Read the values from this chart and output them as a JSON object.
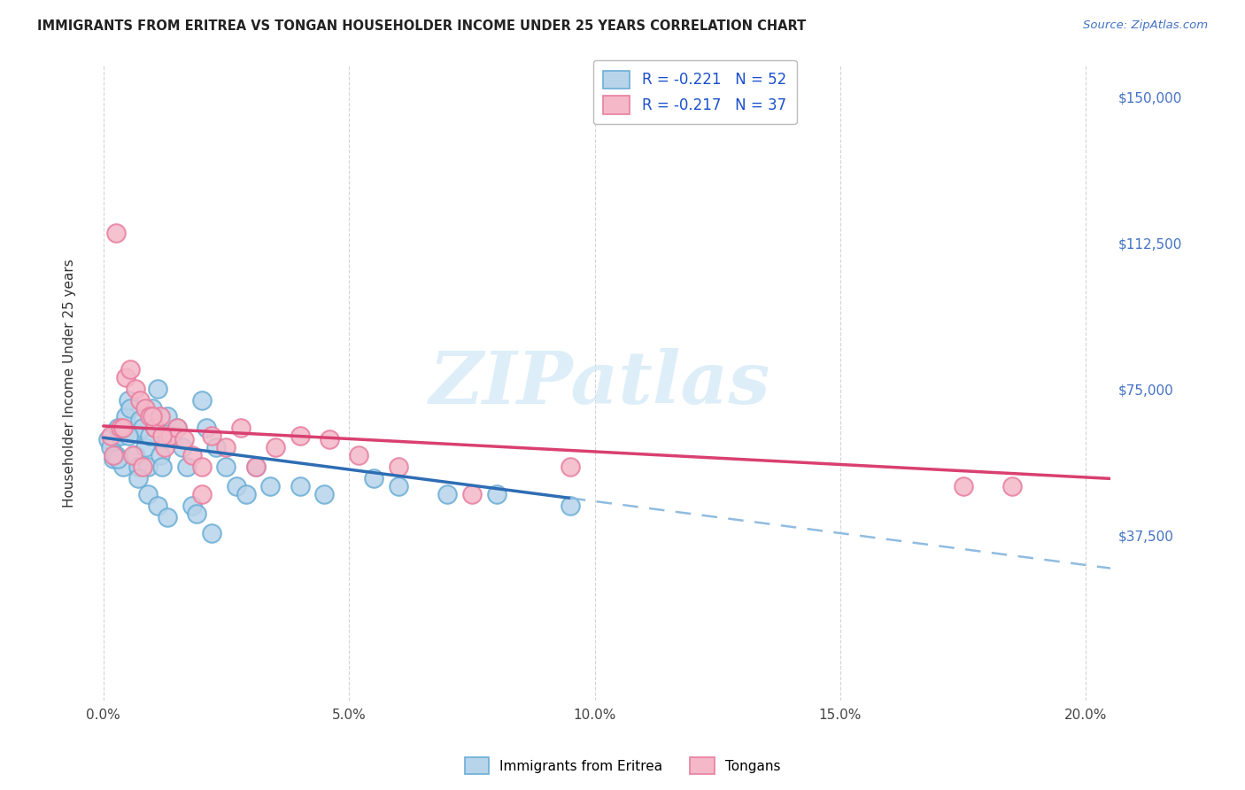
{
  "title": "IMMIGRANTS FROM ERITREA VS TONGAN HOUSEHOLDER INCOME UNDER 25 YEARS CORRELATION CHART",
  "source": "Source: ZipAtlas.com",
  "ylabel": "Householder Income Under 25 years",
  "xlabel_ticks": [
    "0.0%",
    "5.0%",
    "10.0%",
    "15.0%",
    "20.0%"
  ],
  "xlabel_vals": [
    0.0,
    5.0,
    10.0,
    15.0,
    20.0
  ],
  "ytick_vals": [
    0,
    37500,
    75000,
    112500,
    150000
  ],
  "ytick_labels": [
    "",
    "$37,500",
    "$75,000",
    "$112,500",
    "$150,000"
  ],
  "xlim": [
    -0.3,
    20.5
  ],
  "ylim": [
    -5000,
    158000
  ],
  "eritrea_fill": "#b8d4ea",
  "eritrea_edge": "#6aaed6",
  "tongan_fill": "#f4b8c8",
  "tongan_edge": "#e87fa0",
  "eritrea_trend_color": "#2e6db4",
  "eritrea_dash_color": "#90bce0",
  "tongan_trend_color": "#d94070",
  "grid_color": "#d0d0d0",
  "background": "#ffffff",
  "legend_text_color": "#1a4fcc",
  "legend_label_eritrea": "R = -0.221   N = 52",
  "legend_label_tongan": "R = -0.217   N = 37",
  "series_eritrea": "Immigrants from Eritrea",
  "series_tongan": "Tongans",
  "watermark": "ZIPatlas",
  "eritrea_x": [
    0.1,
    0.15,
    0.2,
    0.25,
    0.3,
    0.35,
    0.4,
    0.45,
    0.5,
    0.55,
    0.6,
    0.65,
    0.7,
    0.75,
    0.8,
    0.85,
    0.9,
    0.95,
    1.0,
    1.05,
    1.1,
    1.15,
    1.2,
    1.3,
    1.4,
    1.5,
    1.6,
    1.7,
    1.8,
    1.9,
    2.0,
    2.1,
    2.3,
    2.5,
    2.7,
    2.9,
    3.1,
    3.4,
    4.0,
    4.5,
    5.5,
    6.0,
    7.0,
    8.0,
    9.5,
    0.3,
    0.5,
    0.7,
    0.9,
    1.1,
    1.3,
    2.2
  ],
  "eritrea_y": [
    62000,
    60000,
    57000,
    58000,
    65000,
    63000,
    55000,
    68000,
    72000,
    70000,
    64000,
    58000,
    55000,
    67000,
    65000,
    60000,
    55000,
    63000,
    70000,
    65000,
    75000,
    58000,
    55000,
    68000,
    63000,
    65000,
    60000,
    55000,
    45000,
    43000,
    72000,
    65000,
    60000,
    55000,
    50000,
    48000,
    55000,
    50000,
    50000,
    48000,
    52000,
    50000,
    48000,
    48000,
    45000,
    57000,
    63000,
    52000,
    48000,
    45000,
    42000,
    38000
  ],
  "tongan_x": [
    0.15,
    0.25,
    0.35,
    0.45,
    0.55,
    0.65,
    0.75,
    0.85,
    0.95,
    1.05,
    1.15,
    1.25,
    1.35,
    1.5,
    1.65,
    1.8,
    2.0,
    2.2,
    2.5,
    2.8,
    3.1,
    3.5,
    4.0,
    4.6,
    5.2,
    6.0,
    7.5,
    9.5,
    17.5,
    18.5,
    0.2,
    0.4,
    0.6,
    0.8,
    1.0,
    1.2,
    2.0
  ],
  "tongan_y": [
    63000,
    115000,
    65000,
    78000,
    80000,
    75000,
    72000,
    70000,
    68000,
    65000,
    68000,
    60000,
    63000,
    65000,
    62000,
    58000,
    55000,
    63000,
    60000,
    65000,
    55000,
    60000,
    63000,
    62000,
    58000,
    55000,
    48000,
    55000,
    50000,
    50000,
    58000,
    65000,
    58000,
    55000,
    68000,
    63000,
    48000
  ],
  "eritrea_trend_x0": 0.0,
  "eritrea_trend_y0": 62500,
  "eritrea_trend_x1": 9.5,
  "eritrea_trend_y1": 47000,
  "eritrea_dash_x0": 9.5,
  "eritrea_dash_y0": 47000,
  "eritrea_dash_x1": 20.5,
  "eritrea_dash_y1": 29000,
  "tongan_trend_x0": 0.0,
  "tongan_trend_y0": 65500,
  "tongan_trend_x1": 20.5,
  "tongan_trend_y1": 52000
}
